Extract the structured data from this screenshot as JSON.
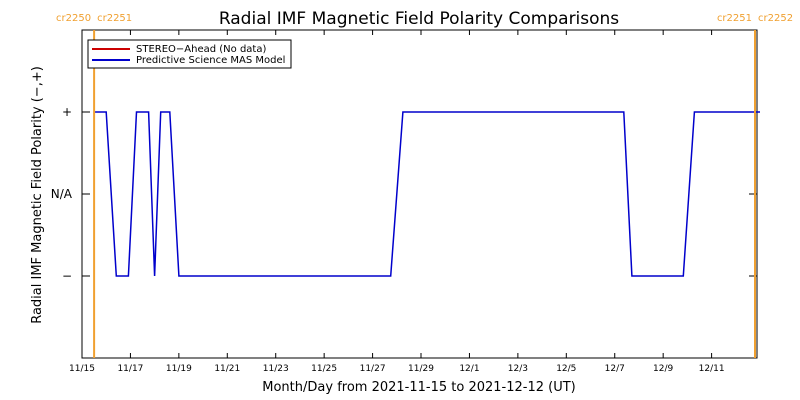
{
  "chart_data": {
    "type": "line",
    "title": "Radial IMF Magnetic Field Polarity Comparisons",
    "xlabel": "Month/Day from 2021-11-15 to 2021-12-12 (UT)",
    "ylabel": "Radial IMF Magnetic Field Polarity (−,+)",
    "x_range": [
      "2021-11-15",
      "2021-12-12"
    ],
    "ylim": [
      -2,
      2
    ],
    "y_ticks": [
      {
        "value": 1,
        "label": "+"
      },
      {
        "value": 0,
        "label": "N/A"
      },
      {
        "value": -1,
        "label": "−"
      }
    ],
    "x_ticks": [
      {
        "date": "2021-11-15",
        "label": "11/15"
      },
      {
        "date": "2021-11-17",
        "label": "11/17"
      },
      {
        "date": "2021-11-19",
        "label": "11/19"
      },
      {
        "date": "2021-11-21",
        "label": "11/21"
      },
      {
        "date": "2021-11-23",
        "label": "11/23"
      },
      {
        "date": "2021-11-25",
        "label": "11/25"
      },
      {
        "date": "2021-11-27",
        "label": "11/27"
      },
      {
        "date": "2021-11-29",
        "label": "11/29"
      },
      {
        "date": "2021-12-01",
        "label": "12/1"
      },
      {
        "date": "2021-12-03",
        "label": "12/3"
      },
      {
        "date": "2021-12-05",
        "label": "12/5"
      },
      {
        "date": "2021-12-07",
        "label": "12/7"
      },
      {
        "date": "2021-12-09",
        "label": "12/9"
      },
      {
        "date": "2021-12-11",
        "label": "12/11"
      }
    ],
    "carrington_markers": [
      {
        "date": "2021-11-15T12:00",
        "left_label": "cr2250",
        "right_label": "cr2251",
        "color": "#f0a030"
      },
      {
        "date": "2021-12-12T20:00",
        "left_label": "cr2251",
        "right_label": "cr2252",
        "color": "#f0a030"
      }
    ],
    "legend": {
      "position": "top-left",
      "entries": [
        {
          "name": "STEREO−Ahead (No data)",
          "color": "#cc0000"
        },
        {
          "name": "Predictive Science MAS Model",
          "color": "#0000cc"
        }
      ]
    },
    "series": [
      {
        "name": "Predictive Science MAS Model",
        "color": "#0000cc",
        "points": [
          [
            "2021-11-15T12:00",
            1
          ],
          [
            "2021-11-16T00:00",
            1
          ],
          [
            "2021-11-16T10:00",
            -1
          ],
          [
            "2021-11-16T22:00",
            -1
          ],
          [
            "2021-11-17T06:00",
            1
          ],
          [
            "2021-11-17T18:00",
            1
          ],
          [
            "2021-11-18T00:00",
            -1
          ],
          [
            "2021-11-18T06:00",
            1
          ],
          [
            "2021-11-18T15:00",
            1
          ],
          [
            "2021-11-19T00:00",
            -1
          ],
          [
            "2021-11-27T18:00",
            -1
          ],
          [
            "2021-11-28T06:00",
            1
          ],
          [
            "2021-12-07T09:00",
            1
          ],
          [
            "2021-12-07T17:00",
            -1
          ],
          [
            "2021-12-09T20:00",
            -1
          ],
          [
            "2021-12-10T07:00",
            1
          ],
          [
            "2021-12-13T00:00",
            1
          ]
        ]
      }
    ]
  }
}
